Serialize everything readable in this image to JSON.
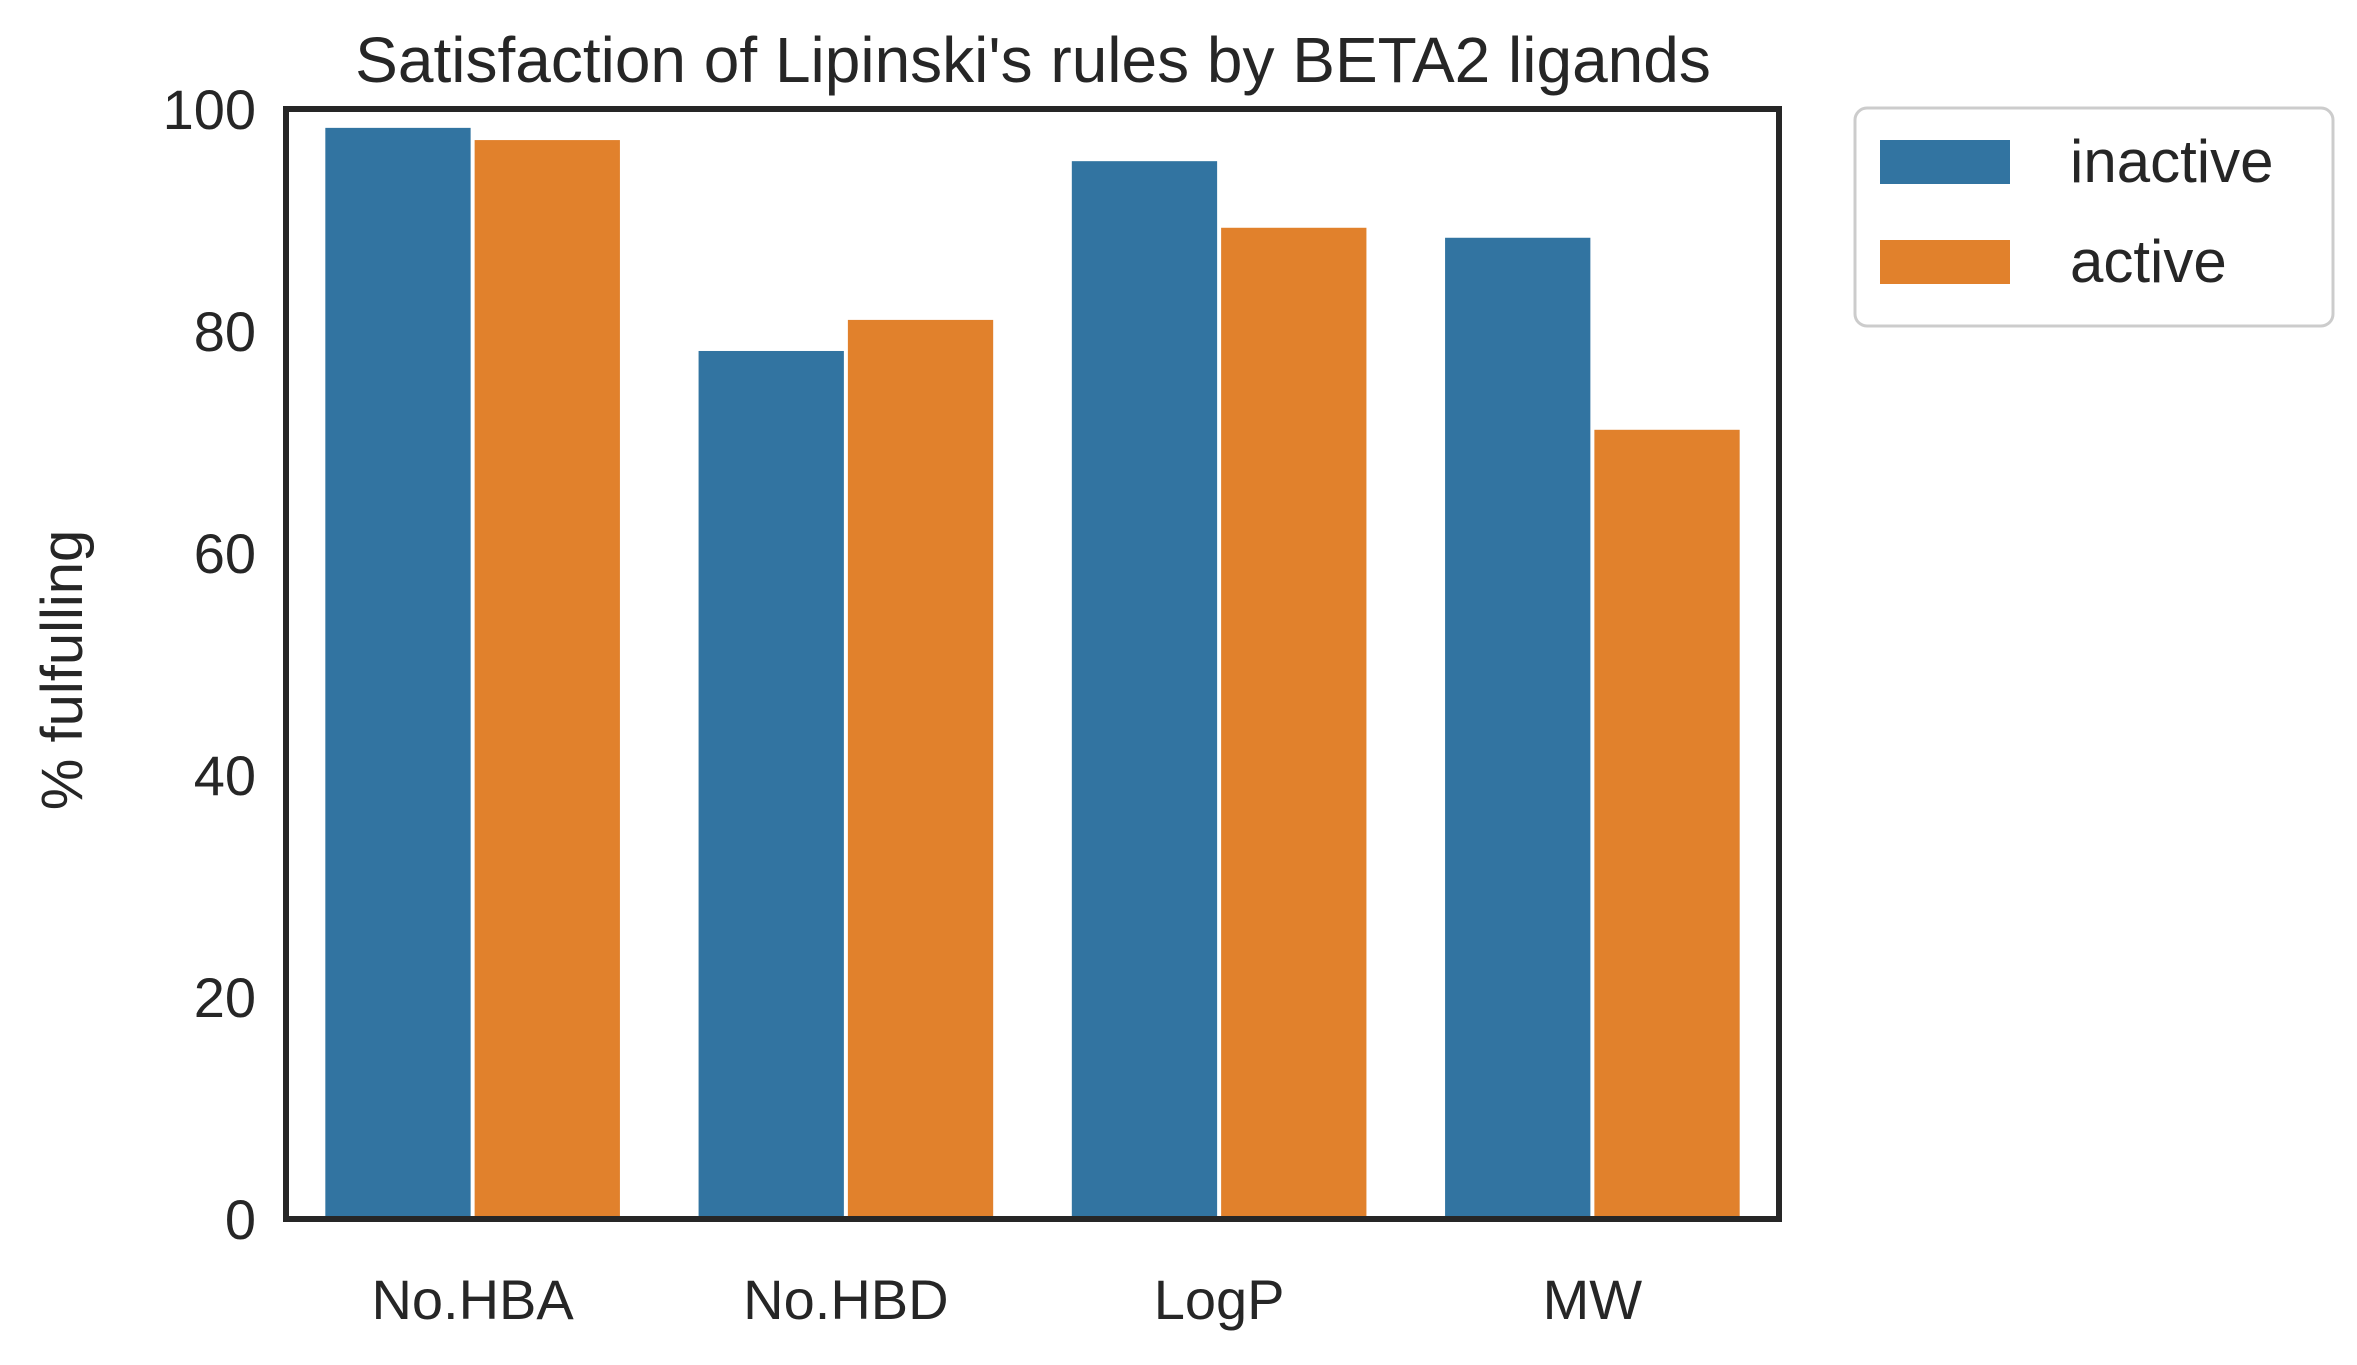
{
  "chart_data": {
    "type": "bar",
    "title": "Satisfaction of Lipinski's rules by BETA2 ligands",
    "xlabel": "",
    "ylabel": "% fulfulling",
    "categories": [
      "No.HBA",
      "No.HBD",
      "LogP",
      "MW"
    ],
    "series": [
      {
        "name": "inactive",
        "color": "#3274a1",
        "values": [
          98.3,
          78.2,
          95.3,
          88.4
        ]
      },
      {
        "name": "active",
        "color": "#e1812c",
        "values": [
          97.2,
          81.0,
          89.3,
          71.1
        ]
      }
    ],
    "ylim": [
      0,
      100
    ],
    "yticks": [
      0,
      20,
      40,
      60,
      80,
      100
    ],
    "grid": false,
    "legend": "outside-top-right"
  }
}
